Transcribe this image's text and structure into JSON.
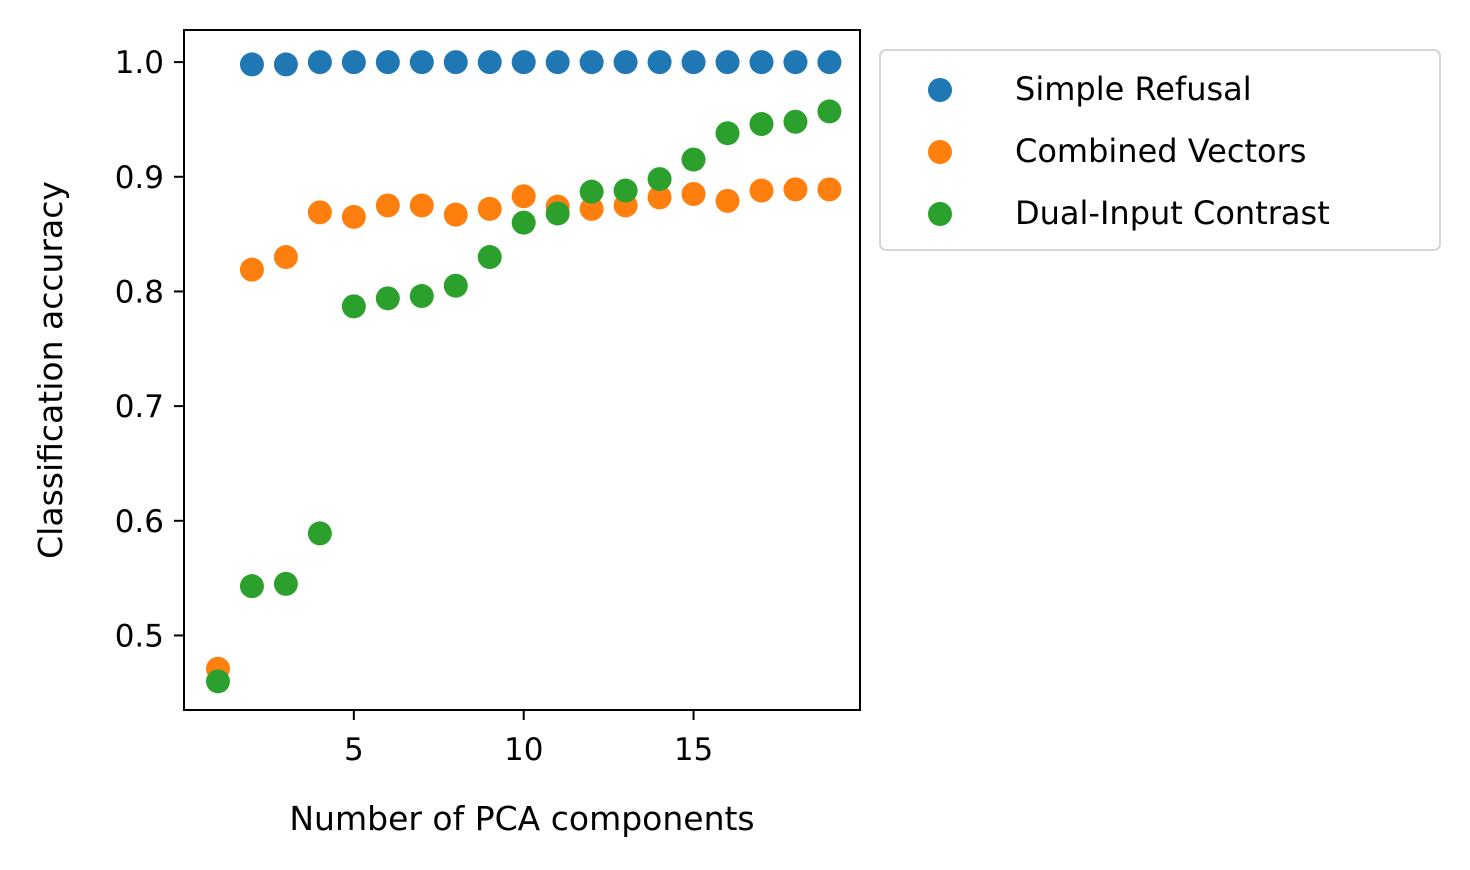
{
  "chart_data": {
    "type": "scatter",
    "title": "",
    "xlabel": "Number of PCA components",
    "ylabel": "Classification accuracy",
    "xlim": [
      0.0,
      19.9
    ],
    "ylim": [
      0.435,
      1.028
    ],
    "xticks": [
      5,
      10,
      15
    ],
    "yticks": [
      0.5,
      0.6,
      0.7,
      0.8,
      0.9,
      1.0
    ],
    "xtick_labels": [
      "5",
      "10",
      "15"
    ],
    "ytick_labels": [
      "0.5",
      "0.6",
      "0.7",
      "0.8",
      "0.9",
      "1.0"
    ],
    "grid": false,
    "legend_position": "outside upper right",
    "x": [
      1,
      2,
      3,
      4,
      5,
      6,
      7,
      8,
      9,
      10,
      11,
      12,
      13,
      14,
      15,
      16,
      17,
      18,
      19
    ],
    "series": [
      {
        "name": "Simple Refusal",
        "color": "#1f77b4",
        "x": [
          2,
          3,
          4,
          5,
          6,
          7,
          8,
          9,
          10,
          11,
          12,
          13,
          14,
          15,
          16,
          17,
          18,
          19
        ],
        "values": [
          0.998,
          0.998,
          1.0,
          1.0,
          1.0,
          1.0,
          1.0,
          1.0,
          1.0,
          1.0,
          1.0,
          1.0,
          1.0,
          1.0,
          1.0,
          1.0,
          1.0,
          1.0
        ]
      },
      {
        "name": "Combined Vectors",
        "color": "#ff7f0e",
        "values": [
          0.471,
          0.819,
          0.83,
          0.869,
          0.865,
          0.875,
          0.875,
          0.867,
          0.872,
          0.883,
          0.874,
          0.872,
          0.875,
          0.882,
          0.885,
          0.879,
          0.888,
          0.889,
          0.889
        ]
      },
      {
        "name": "Dual-Input Contrast",
        "color": "#2ca02c",
        "values": [
          0.46,
          0.543,
          0.545,
          0.589,
          0.787,
          0.794,
          0.796,
          0.805,
          0.83,
          0.86,
          0.868,
          0.887,
          0.888,
          0.898,
          0.915,
          0.938,
          0.946,
          0.948,
          0.957
        ]
      }
    ]
  }
}
